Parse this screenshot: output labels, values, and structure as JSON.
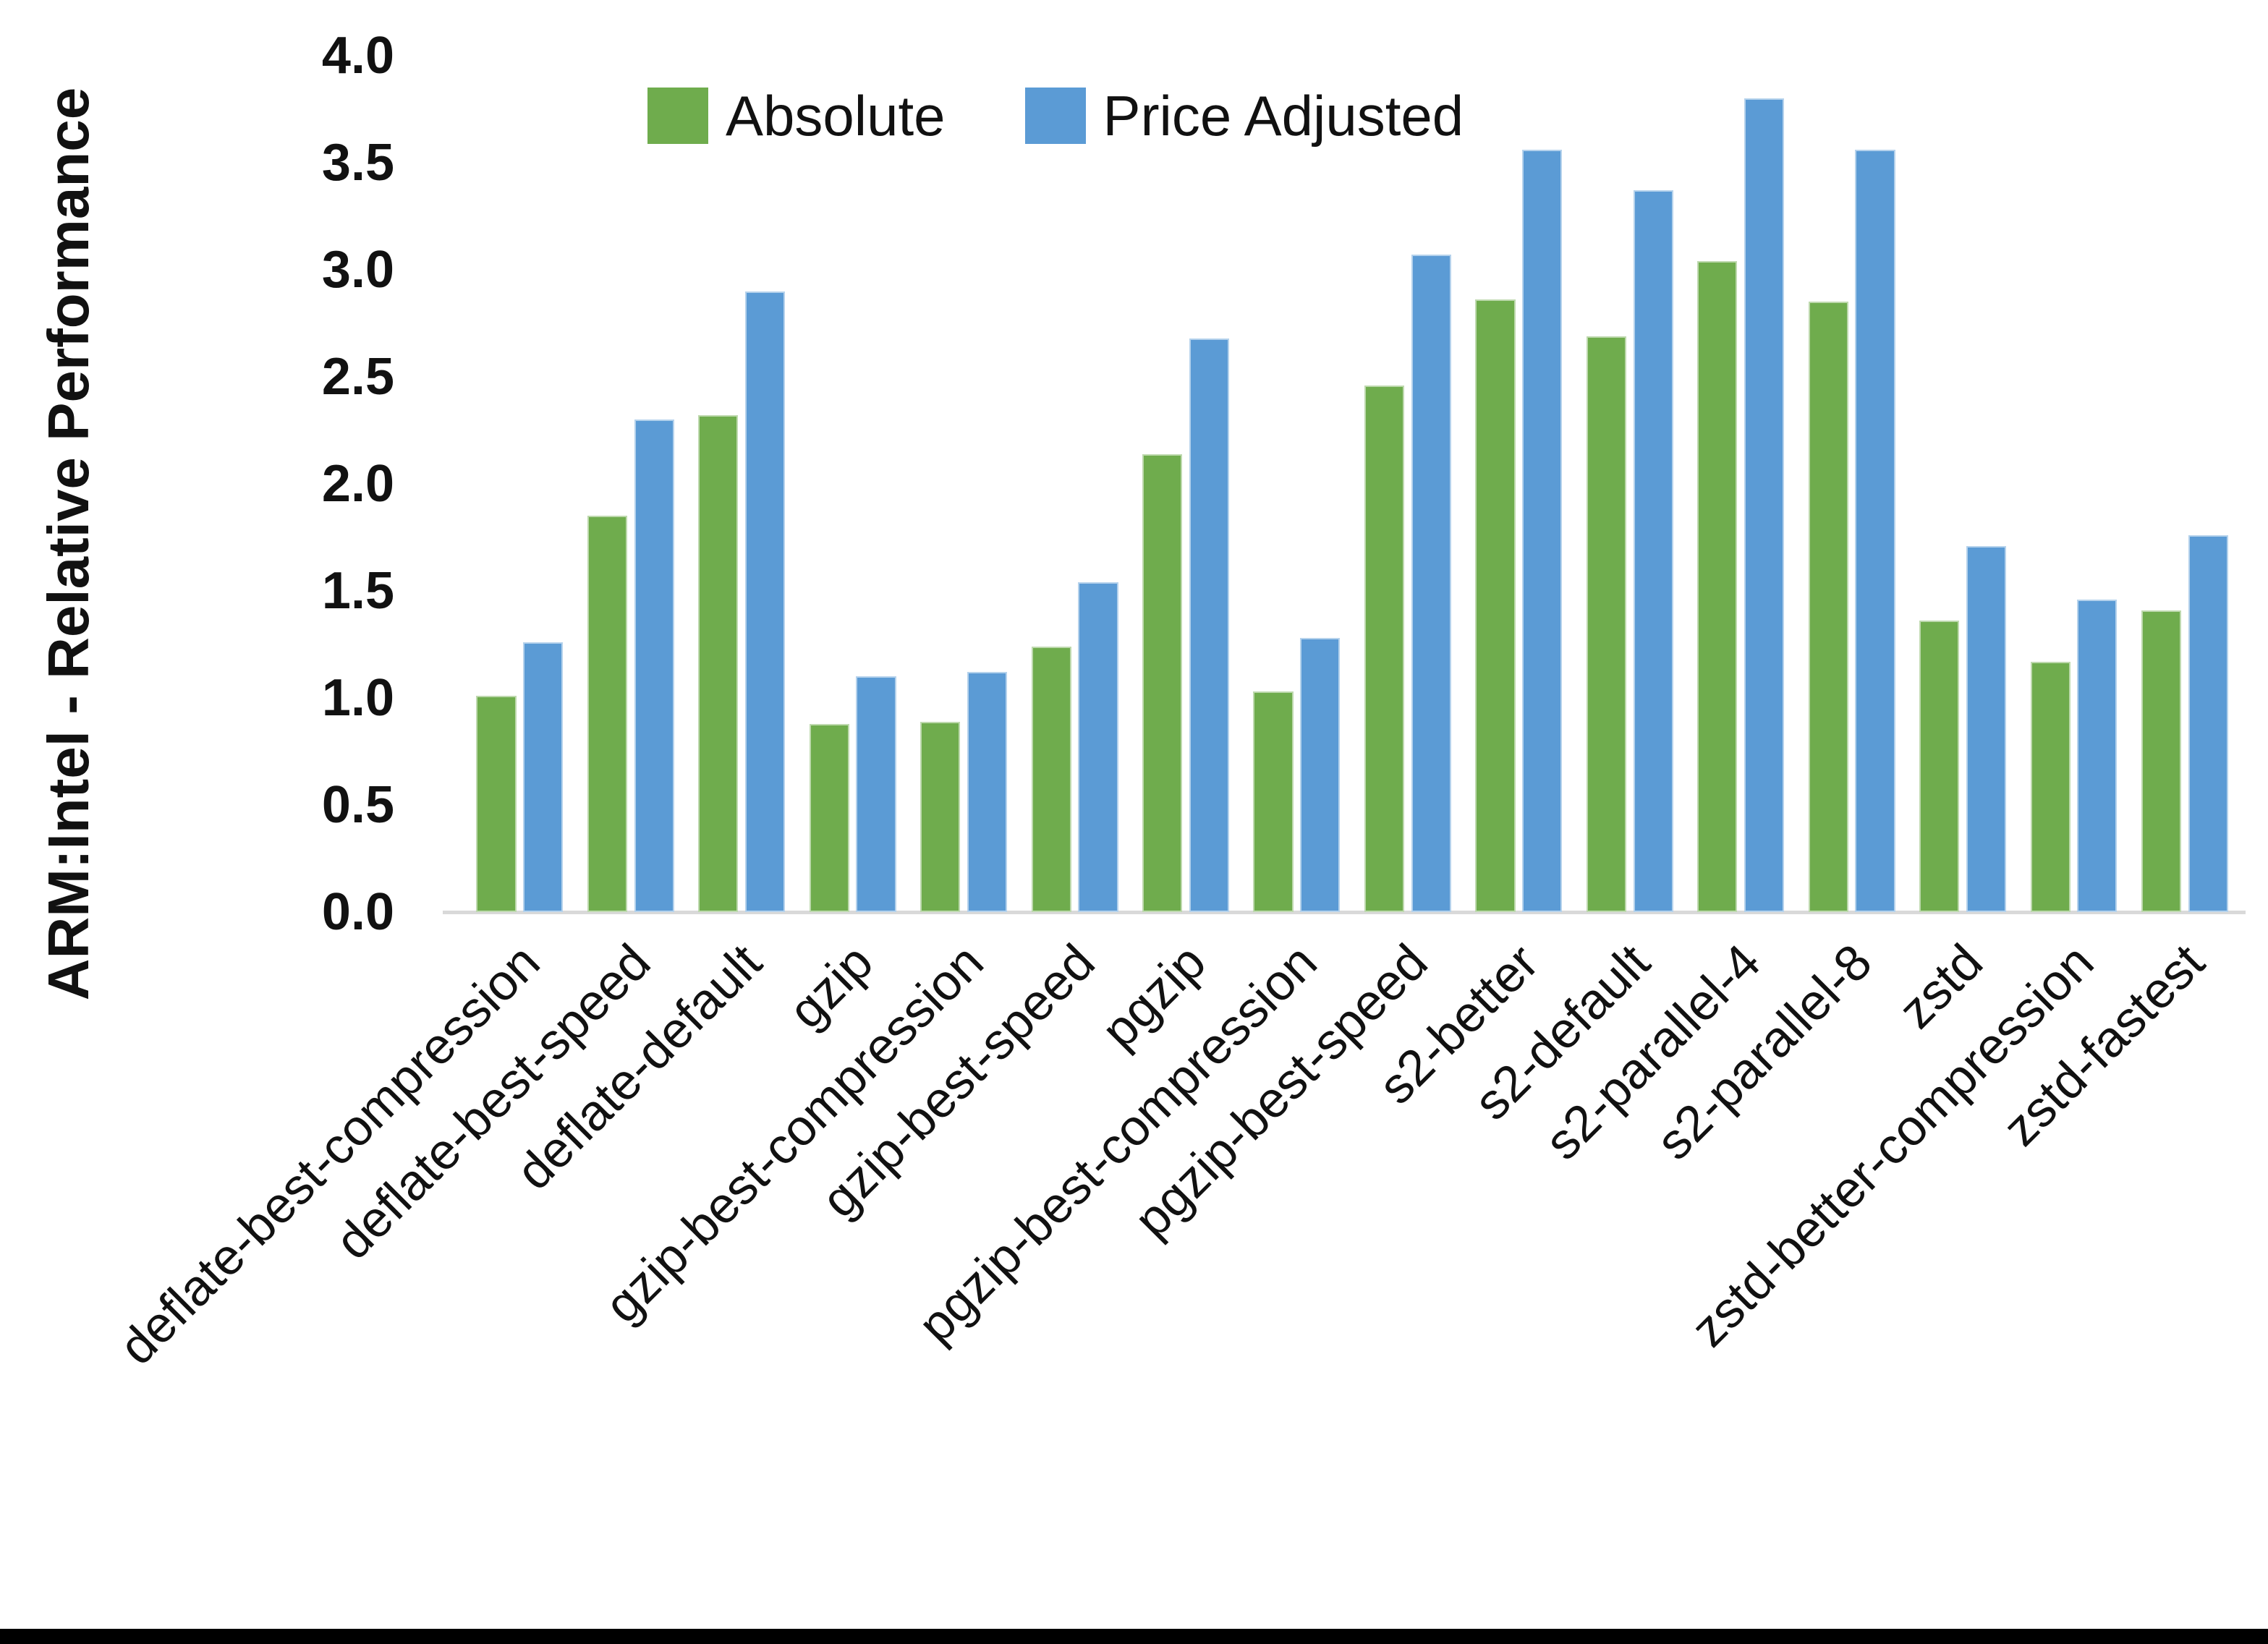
{
  "chart_data": {
    "type": "bar",
    "title": "",
    "xlabel": "",
    "ylabel": "ARM:Intel - Relative Performance",
    "ylim": [
      0.0,
      4.0
    ],
    "ytick_step": 0.5,
    "yticks": [
      "4.0",
      "3.5",
      "3.0",
      "2.5",
      "2.0",
      "1.5",
      "1.0",
      "0.5",
      "0.0"
    ],
    "grid": false,
    "legend_position": "top-center",
    "categories": [
      "deflate-best-compression",
      "deflate-best-speed",
      "deflate-default",
      "gzip",
      "gzip-best-compression",
      "gzip-best-speed",
      "pgzip",
      "pgzip-best-compression",
      "pgzip-best-speed",
      "s2-better",
      "s2-default",
      "s2-parallel-4",
      "s2-parallel-8",
      "zstd",
      "zstd-better-compression",
      "zstd-fastest"
    ],
    "series": [
      {
        "name": "Absolute",
        "color": "#6fac4d",
        "values": [
          1.01,
          1.85,
          2.32,
          0.88,
          0.89,
          1.24,
          2.14,
          1.03,
          2.46,
          2.86,
          2.69,
          3.04,
          2.85,
          1.36,
          1.17,
          1.41
        ]
      },
      {
        "name": "Price Adjusted",
        "color": "#5b9bd5",
        "values": [
          1.26,
          2.3,
          2.9,
          1.1,
          1.12,
          1.54,
          2.68,
          1.28,
          3.07,
          3.56,
          3.37,
          3.8,
          3.56,
          1.71,
          1.46,
          1.76
        ]
      }
    ]
  },
  "colors": {
    "background": "#ffffff",
    "axis_line": "#d9d9d9",
    "text": "#111111",
    "bottom_border": "#000000"
  }
}
